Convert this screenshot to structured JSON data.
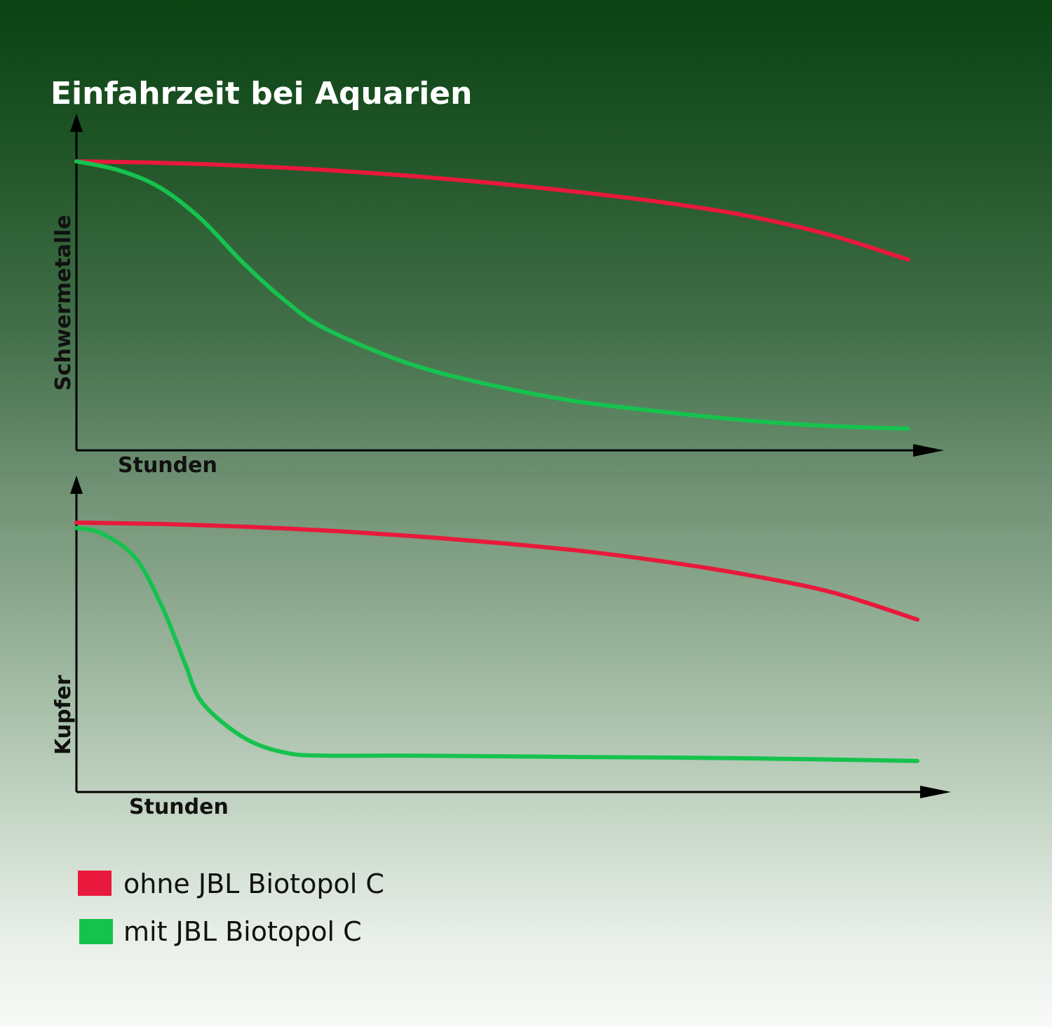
{
  "title": "Einfahrzeit bei Aquarien",
  "colors": {
    "ohne": "#e8193c",
    "mit": "#16c24e"
  },
  "legend": [
    {
      "label": "ohne JBL Biotopol C",
      "color": "#e8193c"
    },
    {
      "label": "mit JBL Biotopol C",
      "color": "#16c24e"
    }
  ],
  "chart_data": [
    {
      "type": "line",
      "title": "Einfahrzeit bei Aquarien",
      "xlabel": "Stunden",
      "ylabel": "Schwermetalle",
      "xlim": [
        0,
        100
      ],
      "ylim": [
        0,
        100
      ],
      "grid": false,
      "legend_position": "bottom-left",
      "series": [
        {
          "name": "ohne JBL Biotopol C",
          "color": "#e8193c",
          "x": [
            0,
            10,
            20,
            30,
            40,
            50,
            60,
            70,
            80,
            90,
            100
          ],
          "y": [
            100,
            99.5,
            98.5,
            97,
            95,
            92.5,
            89.5,
            86,
            81.5,
            75,
            66
          ]
        },
        {
          "name": "mit JBL Biotopol C",
          "color": "#16c24e",
          "x": [
            0,
            5,
            10,
            15,
            20,
            25,
            30,
            40,
            50,
            60,
            70,
            80,
            90,
            100
          ],
          "y": [
            100,
            97,
            91,
            80,
            65,
            52,
            42,
            30,
            22.5,
            17,
            13.5,
            10.5,
            8.5,
            7.5
          ]
        }
      ]
    },
    {
      "type": "line",
      "xlabel": "Stunden",
      "ylabel": "Kupfer",
      "xlim": [
        0,
        100
      ],
      "ylim": [
        0,
        100
      ],
      "grid": false,
      "series": [
        {
          "name": "ohne JBL Biotopol C",
          "color": "#e8193c",
          "x": [
            0,
            10,
            20,
            30,
            40,
            50,
            60,
            70,
            80,
            90,
            100
          ],
          "y": [
            100,
            99.5,
            98.5,
            97,
            95,
            92.5,
            89.5,
            85.5,
            80.5,
            74,
            64
          ]
        },
        {
          "name": "mit JBL Biotopol C",
          "color": "#16c24e",
          "x": [
            0,
            3,
            7,
            10,
            12,
            13,
            15,
            20,
            25,
            30,
            40,
            60,
            80,
            100
          ],
          "y": [
            98,
            96,
            87,
            70,
            55,
            47,
            33,
            20,
            14.5,
            13.5,
            13.5,
            13,
            12.5,
            11.5
          ]
        }
      ]
    }
  ]
}
